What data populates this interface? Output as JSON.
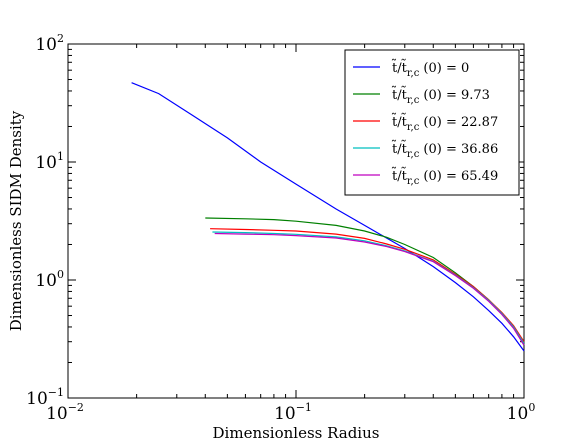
{
  "chart_data": {
    "type": "line",
    "xlabel": "Dimensionless Radius",
    "ylabel": "Dimensionless SIDM Density",
    "xscale": "log",
    "yscale": "log",
    "xlim": [
      0.01,
      1
    ],
    "ylim": [
      0.1,
      100
    ],
    "grid": false,
    "legend_position": "top-right",
    "x_ticks": [
      {
        "base": "10",
        "exp": "−2"
      },
      {
        "base": "10",
        "exp": "−1"
      },
      {
        "base": "10",
        "exp": "0"
      }
    ],
    "y_ticks": [
      {
        "base": "10",
        "exp": "−1"
      },
      {
        "base": "10",
        "exp": "0"
      },
      {
        "base": "10",
        "exp": "1"
      },
      {
        "base": "10",
        "exp": "2"
      }
    ],
    "series": [
      {
        "name": "t̃/t̃r,c (0) = 0",
        "legend_prefix": "t̃/t̃",
        "legend_sub": "r,c",
        "legend_suffix": " (0) = 0",
        "color": "#0000ff",
        "points": [
          [
            0.019,
            47
          ],
          [
            0.025,
            38
          ],
          [
            0.035,
            25
          ],
          [
            0.05,
            16
          ],
          [
            0.07,
            10
          ],
          [
            0.1,
            6.5
          ],
          [
            0.15,
            4
          ],
          [
            0.2,
            2.9
          ],
          [
            0.3,
            1.85
          ],
          [
            0.4,
            1.3
          ],
          [
            0.5,
            0.95
          ],
          [
            0.6,
            0.72
          ],
          [
            0.7,
            0.55
          ],
          [
            0.8,
            0.43
          ],
          [
            0.9,
            0.33
          ],
          [
            1.0,
            0.25
          ]
        ]
      },
      {
        "name": "t̃/t̃r,c (0) = 9.73",
        "legend_prefix": "t̃/t̃",
        "legend_sub": "r,c",
        "legend_suffix": " (0) = 9.73",
        "color": "#008000",
        "points": [
          [
            0.04,
            3.35
          ],
          [
            0.06,
            3.3
          ],
          [
            0.08,
            3.25
          ],
          [
            0.1,
            3.15
          ],
          [
            0.15,
            2.9
          ],
          [
            0.2,
            2.6
          ],
          [
            0.25,
            2.3
          ],
          [
            0.3,
            2.0
          ],
          [
            0.4,
            1.55
          ],
          [
            0.5,
            1.15
          ],
          [
            0.6,
            0.88
          ],
          [
            0.7,
            0.68
          ],
          [
            0.8,
            0.52
          ],
          [
            0.9,
            0.4
          ],
          [
            1.0,
            0.28
          ]
        ]
      },
      {
        "name": "t̃/t̃r,c (0) = 22.87",
        "legend_prefix": "t̃/t̃",
        "legend_sub": "r,c",
        "legend_suffix": " (0) = 22.87",
        "color": "#ff0000",
        "points": [
          [
            0.042,
            2.72
          ],
          [
            0.06,
            2.68
          ],
          [
            0.08,
            2.64
          ],
          [
            0.1,
            2.6
          ],
          [
            0.15,
            2.45
          ],
          [
            0.2,
            2.25
          ],
          [
            0.25,
            2.02
          ],
          [
            0.3,
            1.82
          ],
          [
            0.4,
            1.48
          ],
          [
            0.5,
            1.12
          ],
          [
            0.6,
            0.88
          ],
          [
            0.7,
            0.68
          ],
          [
            0.8,
            0.53
          ],
          [
            0.9,
            0.41
          ],
          [
            1.0,
            0.3
          ]
        ]
      },
      {
        "name": "t̃/t̃r,c (0) = 36.86",
        "legend_prefix": "t̃/t̃",
        "legend_sub": "r,c",
        "legend_suffix": " (0) = 36.86",
        "color": "#00bfbf",
        "points": [
          [
            0.043,
            2.55
          ],
          [
            0.06,
            2.52
          ],
          [
            0.08,
            2.48
          ],
          [
            0.1,
            2.44
          ],
          [
            0.15,
            2.32
          ],
          [
            0.2,
            2.15
          ],
          [
            0.25,
            1.95
          ],
          [
            0.3,
            1.76
          ],
          [
            0.4,
            1.44
          ],
          [
            0.5,
            1.1
          ],
          [
            0.6,
            0.86
          ],
          [
            0.7,
            0.67
          ],
          [
            0.8,
            0.52
          ],
          [
            0.9,
            0.4
          ],
          [
            1.0,
            0.29
          ]
        ]
      },
      {
        "name": "t̃/t̃r,c (0) = 65.49",
        "legend_prefix": "t̃/t̃",
        "legend_sub": "r,c",
        "legend_suffix": " (0) = 65.49",
        "color": "#bf00bf",
        "points": [
          [
            0.044,
            2.48
          ],
          [
            0.06,
            2.45
          ],
          [
            0.08,
            2.42
          ],
          [
            0.1,
            2.38
          ],
          [
            0.15,
            2.27
          ],
          [
            0.2,
            2.1
          ],
          [
            0.25,
            1.92
          ],
          [
            0.3,
            1.74
          ],
          [
            0.4,
            1.43
          ],
          [
            0.5,
            1.09
          ],
          [
            0.6,
            0.85
          ],
          [
            0.7,
            0.66
          ],
          [
            0.8,
            0.51
          ],
          [
            0.9,
            0.39
          ],
          [
            1.0,
            0.28
          ]
        ]
      }
    ]
  }
}
